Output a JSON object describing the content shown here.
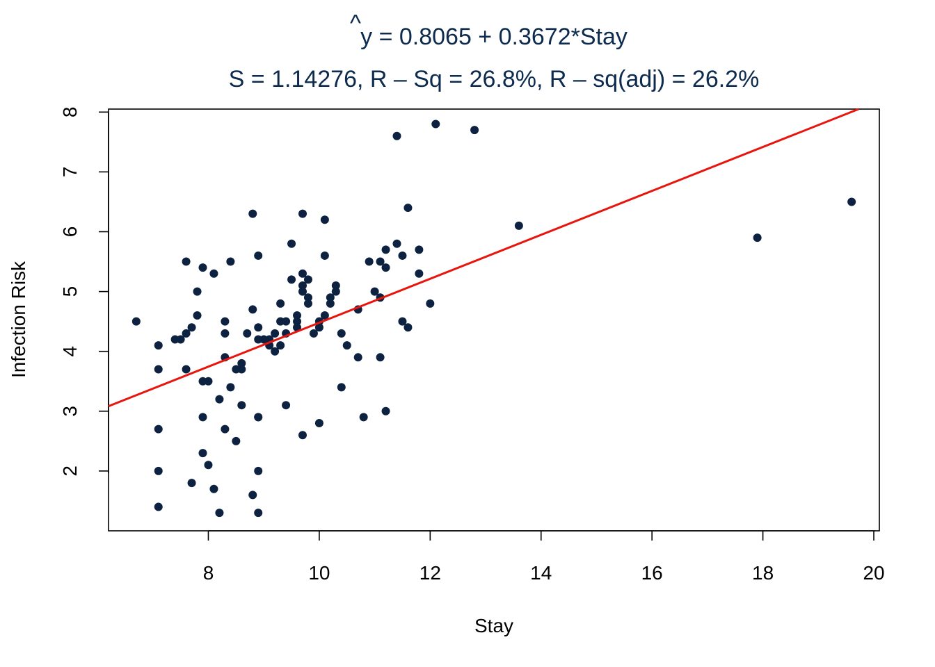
{
  "chart_data": {
    "type": "scatter",
    "title_hat": "^",
    "title_line1": "y = 0.8065 + 0.3672*Stay",
    "title_line2": "S = 1.14276, R – Sq = 26.8%, R – sq(adj) = 26.2%",
    "xlabel": "Stay",
    "ylabel": "Infection Risk",
    "xlim": [
      6.2,
      20.1
    ],
    "ylim": [
      1.0,
      8.05
    ],
    "xticks": [
      8,
      10,
      12,
      14,
      16,
      18,
      20
    ],
    "yticks": [
      2,
      3,
      4,
      5,
      6,
      7,
      8
    ],
    "regression": {
      "intercept": 0.8065,
      "slope": 0.3672,
      "color": "#e8150e"
    },
    "point_color": "#0d2241",
    "grid": false,
    "points": [
      [
        6.7,
        4.5
      ],
      [
        7.1,
        4.1
      ],
      [
        7.1,
        3.7
      ],
      [
        7.1,
        2.0
      ],
      [
        7.1,
        2.7
      ],
      [
        7.1,
        1.4
      ],
      [
        7.4,
        4.2
      ],
      [
        7.5,
        4.2
      ],
      [
        7.6,
        3.7
      ],
      [
        7.6,
        5.5
      ],
      [
        7.6,
        4.3
      ],
      [
        7.7,
        4.4
      ],
      [
        7.7,
        1.8
      ],
      [
        7.8,
        5.0
      ],
      [
        7.8,
        4.6
      ],
      [
        7.9,
        5.4
      ],
      [
        7.9,
        2.9
      ],
      [
        7.9,
        3.5
      ],
      [
        8.0,
        3.5
      ],
      [
        7.9,
        2.3
      ],
      [
        8.0,
        2.1
      ],
      [
        8.1,
        1.7
      ],
      [
        8.1,
        5.3
      ],
      [
        8.2,
        1.3
      ],
      [
        8.2,
        3.2
      ],
      [
        8.3,
        4.5
      ],
      [
        8.3,
        4.3
      ],
      [
        8.3,
        3.9
      ],
      [
        8.3,
        2.7
      ],
      [
        8.4,
        5.5
      ],
      [
        8.4,
        3.4
      ],
      [
        8.5,
        3.7
      ],
      [
        8.5,
        2.5
      ],
      [
        8.6,
        3.7
      ],
      [
        8.6,
        3.1
      ],
      [
        8.6,
        3.8
      ],
      [
        8.7,
        4.3
      ],
      [
        8.8,
        4.7
      ],
      [
        8.8,
        6.3
      ],
      [
        8.8,
        1.6
      ],
      [
        8.9,
        4.4
      ],
      [
        8.9,
        4.2
      ],
      [
        8.9,
        2.9
      ],
      [
        8.9,
        2.9
      ],
      [
        8.9,
        2.0
      ],
      [
        8.9,
        1.3
      ],
      [
        8.9,
        5.6
      ],
      [
        9.0,
        4.2
      ],
      [
        9.1,
        4.2
      ],
      [
        9.1,
        4.1
      ],
      [
        9.2,
        4.0
      ],
      [
        9.2,
        4.3
      ],
      [
        9.3,
        4.5
      ],
      [
        9.3,
        4.1
      ],
      [
        9.3,
        4.8
      ],
      [
        9.4,
        4.3
      ],
      [
        9.4,
        4.5
      ],
      [
        9.4,
        3.1
      ],
      [
        9.5,
        5.8
      ],
      [
        9.5,
        5.2
      ],
      [
        9.6,
        4.5
      ],
      [
        9.6,
        4.4
      ],
      [
        9.6,
        4.6
      ],
      [
        9.7,
        6.3
      ],
      [
        9.7,
        5.3
      ],
      [
        9.7,
        5.1
      ],
      [
        9.7,
        5.0
      ],
      [
        9.7,
        2.6
      ],
      [
        9.8,
        5.2
      ],
      [
        9.8,
        4.8
      ],
      [
        9.8,
        4.9
      ],
      [
        9.9,
        4.3
      ],
      [
        10.0,
        4.4
      ],
      [
        10.0,
        2.8
      ],
      [
        10.0,
        4.5
      ],
      [
        10.1,
        4.6
      ],
      [
        10.1,
        5.6
      ],
      [
        10.1,
        6.2
      ],
      [
        10.2,
        4.9
      ],
      [
        10.2,
        4.8
      ],
      [
        10.3,
        5.1
      ],
      [
        10.3,
        5.0
      ],
      [
        10.4,
        4.3
      ],
      [
        10.4,
        3.4
      ],
      [
        10.5,
        4.1
      ],
      [
        10.7,
        4.7
      ],
      [
        10.7,
        3.9
      ],
      [
        10.8,
        2.9
      ],
      [
        10.9,
        5.5
      ],
      [
        11.0,
        5.0
      ],
      [
        11.1,
        4.9
      ],
      [
        11.1,
        5.5
      ],
      [
        11.1,
        3.9
      ],
      [
        11.2,
        5.7
      ],
      [
        11.2,
        5.4
      ],
      [
        11.2,
        3.0
      ],
      [
        11.4,
        5.8
      ],
      [
        11.4,
        7.6
      ],
      [
        11.5,
        5.6
      ],
      [
        11.5,
        4.5
      ],
      [
        11.6,
        6.4
      ],
      [
        11.6,
        4.4
      ],
      [
        11.8,
        5.3
      ],
      [
        11.8,
        5.7
      ],
      [
        12.0,
        4.8
      ],
      [
        12.1,
        7.8
      ],
      [
        12.8,
        7.7
      ],
      [
        13.6,
        6.1
      ],
      [
        17.9,
        5.9
      ],
      [
        19.6,
        6.5
      ]
    ]
  }
}
